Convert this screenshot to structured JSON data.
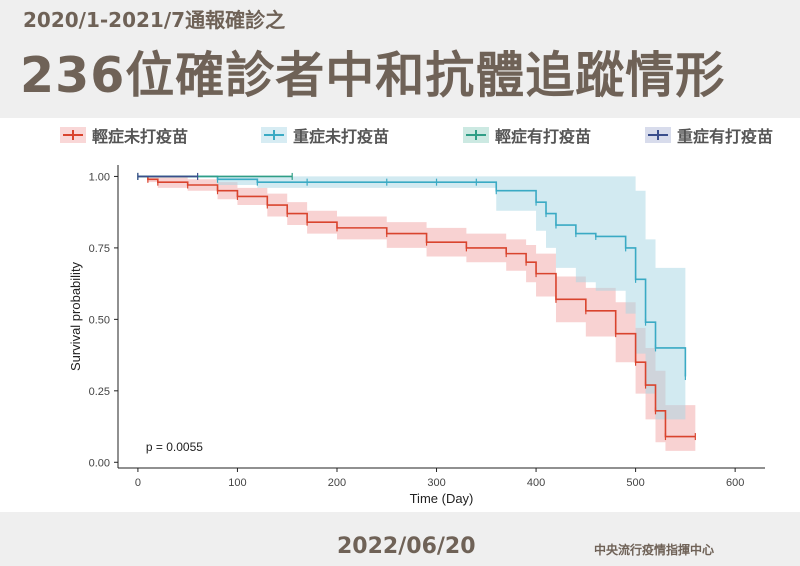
{
  "header": {
    "subtitle": "2020/1-2021/7通報確診之",
    "title": "236位確診者中和抗體追蹤情形"
  },
  "footer": {
    "date": "2022/06/20",
    "org": "中央流行疫情指揮中心"
  },
  "chart_data": {
    "type": "line",
    "subtype": "kaplan-meier survival",
    "xlabel": "Time (Day)",
    "ylabel": "Survival probability",
    "xlim": [
      -20,
      630
    ],
    "ylim": [
      -0.02,
      1.04
    ],
    "xticks": [
      0,
      100,
      200,
      300,
      400,
      500,
      600
    ],
    "yticks": [
      0.0,
      0.25,
      0.5,
      0.75,
      1.0
    ],
    "ytick_labels": [
      "0.00",
      "0.25",
      "0.50",
      "0.75",
      "1.00"
    ],
    "annotation": "p = 0.0055",
    "grid": false,
    "legend_position": "top",
    "series": [
      {
        "name": "輕症未打疫苗",
        "color": "#d9442e",
        "band_color": "#f2a6a6",
        "x": [
          0,
          10,
          20,
          50,
          80,
          100,
          130,
          150,
          170,
          200,
          250,
          290,
          330,
          370,
          390,
          400,
          420,
          450,
          480,
          500,
          510,
          520,
          530,
          560
        ],
        "y": [
          1.0,
          0.99,
          0.98,
          0.97,
          0.95,
          0.93,
          0.9,
          0.87,
          0.84,
          0.82,
          0.8,
          0.77,
          0.75,
          0.73,
          0.7,
          0.66,
          0.57,
          0.53,
          0.45,
          0.35,
          0.27,
          0.18,
          0.09,
          0.09
        ],
        "lower": [
          1.0,
          0.98,
          0.96,
          0.95,
          0.92,
          0.9,
          0.86,
          0.83,
          0.8,
          0.78,
          0.75,
          0.72,
          0.7,
          0.67,
          0.63,
          0.58,
          0.49,
          0.44,
          0.35,
          0.24,
          0.15,
          0.07,
          0.04,
          0.04
        ],
        "upper": [
          1.0,
          1.0,
          1.0,
          0.99,
          0.98,
          0.96,
          0.94,
          0.91,
          0.88,
          0.86,
          0.84,
          0.82,
          0.8,
          0.78,
          0.76,
          0.73,
          0.65,
          0.61,
          0.56,
          0.47,
          0.4,
          0.32,
          0.2,
          0.2
        ]
      },
      {
        "name": "重症未打疫苗",
        "color": "#3aaac4",
        "band_color": "#a6d5e4",
        "x": [
          0,
          80,
          120,
          170,
          250,
          300,
          340,
          360,
          400,
          410,
          420,
          440,
          460,
          490,
          500,
          510,
          520,
          550
        ],
        "y": [
          1.0,
          0.99,
          0.98,
          0.98,
          0.98,
          0.98,
          0.98,
          0.95,
          0.91,
          0.87,
          0.83,
          0.8,
          0.79,
          0.75,
          0.64,
          0.49,
          0.4,
          0.3
        ],
        "lower": [
          1.0,
          0.97,
          0.96,
          0.96,
          0.96,
          0.96,
          0.96,
          0.88,
          0.81,
          0.75,
          0.68,
          0.63,
          0.6,
          0.52,
          0.38,
          0.24,
          0.15,
          0.12
        ],
        "upper": [
          1.0,
          1.0,
          1.0,
          1.0,
          1.0,
          1.0,
          1.0,
          1.0,
          1.0,
          1.0,
          1.0,
          1.0,
          1.0,
          1.0,
          0.95,
          0.78,
          0.68,
          0.68
        ]
      },
      {
        "name": "輕症有打疫苗",
        "color": "#2f9e86",
        "band_color": "#8fcfbf",
        "x": [
          0,
          155
        ],
        "y": [
          1.0,
          1.0
        ],
        "lower": [
          1.0,
          1.0
        ],
        "upper": [
          1.0,
          1.0
        ]
      },
      {
        "name": "重症有打疫苗",
        "color": "#3a4e8c",
        "band_color": "#a9b1d4",
        "x": [
          0,
          60
        ],
        "y": [
          1.0,
          1.0
        ],
        "lower": [
          1.0,
          1.0
        ],
        "upper": [
          1.0,
          1.0
        ]
      }
    ]
  }
}
